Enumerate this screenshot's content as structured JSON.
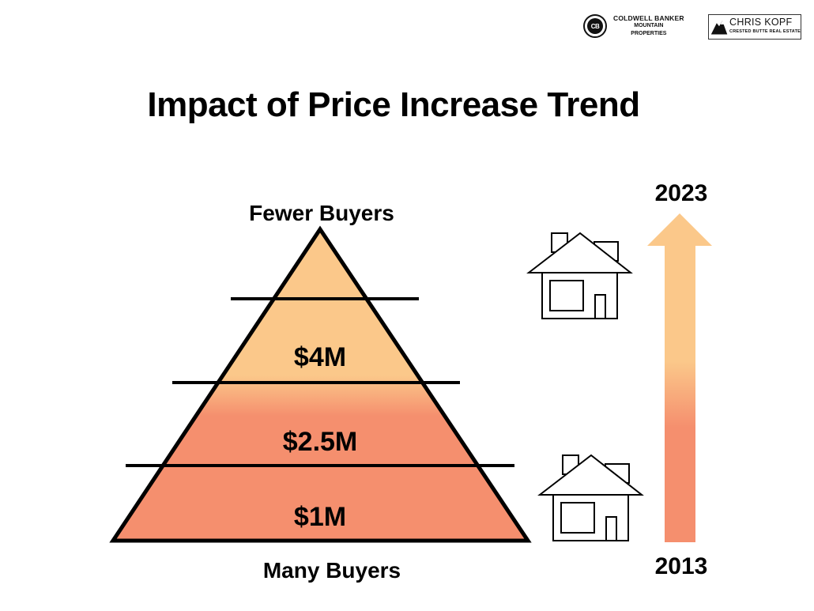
{
  "logos": {
    "cb_seal_text": "CB",
    "cb_line1": "COLDWELL BANKER",
    "cb_line2": "MOUNTAIN",
    "cb_line3": "PROPERTIES",
    "ck_name": "CHRIS KOPF",
    "ck_sub": "CRESTED BUTTE REAL ESTATE"
  },
  "title": "Impact of Price Increase Trend",
  "pyramid": {
    "top_label": "Fewer Buyers",
    "bottom_label": "Many Buyers",
    "tiers": [
      "$4M",
      "$2.5M",
      "$1M"
    ]
  },
  "timeline": {
    "end_year": "2023",
    "start_year": "2013"
  },
  "colors": {
    "top": "#fbc88a",
    "bottom": "#f58f6e",
    "outline": "#000000"
  }
}
